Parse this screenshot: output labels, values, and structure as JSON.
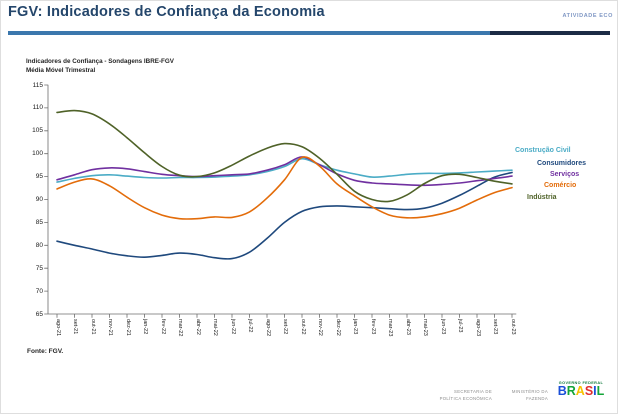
{
  "header": {
    "title": "FGV: Indicadores de Confiança da Economia",
    "tag": "ATIVIDADE ECO",
    "rule_left_color": "#3b77ad",
    "rule_right_color": "#1c2b45"
  },
  "chart": {
    "title_line1": "Indicadores de Confiança - Sondagens IBRE-FGV",
    "title_line2": "Média Móvel Trimestral"
  },
  "chart_data": {
    "type": "line",
    "title": "Indicadores de Confiança - Sondagens IBRE-FGV",
    "subtitle": "Média Móvel Trimestral",
    "xlabel": "",
    "ylabel": "",
    "ylim": [
      65,
      115
    ],
    "ytick_step": 5,
    "grid": false,
    "legend_position": "right-inline",
    "categories": [
      "ago-21",
      "set-21",
      "out-21",
      "nov-21",
      "dez-21",
      "jan-22",
      "fev-22",
      "mar-22",
      "abr-22",
      "mai-22",
      "jun-22",
      "jul-22",
      "ago-22",
      "set-22",
      "out-22",
      "nov-22",
      "dez-22",
      "jan-23",
      "fev-23",
      "mar-23",
      "abr-23",
      "mai-23",
      "jun-23",
      "jul-23",
      "ago-23",
      "set-23",
      "out-23"
    ],
    "series": [
      {
        "name": "Construção Civil",
        "color": "#4bacc6",
        "values": [
          93.8,
          94.6,
          95.2,
          95.4,
          95.1,
          94.8,
          94.7,
          94.8,
          94.8,
          94.9,
          95.1,
          95.4,
          96.1,
          97.2,
          98.9,
          97.6,
          96.4,
          95.6,
          94.9,
          95.1,
          95.5,
          95.7,
          95.7,
          95.8,
          96.0,
          96.2,
          96.4
        ]
      },
      {
        "name": "Consumidores",
        "color": "#1f497d",
        "values": [
          80.9,
          80.0,
          79.2,
          78.3,
          77.7,
          77.4,
          77.8,
          78.3,
          78.0,
          77.3,
          77.1,
          78.5,
          81.5,
          85.0,
          87.4,
          88.4,
          88.6,
          88.4,
          88.2,
          88.0,
          87.8,
          88.1,
          89.2,
          90.9,
          92.9,
          94.9,
          95.9
        ]
      },
      {
        "name": "Serviços",
        "color": "#7030a0",
        "values": [
          94.3,
          95.4,
          96.5,
          96.9,
          96.7,
          96.1,
          95.5,
          95.2,
          95.0,
          95.2,
          95.4,
          95.6,
          96.4,
          97.6,
          99.3,
          97.6,
          95.6,
          94.2,
          93.6,
          93.4,
          93.2,
          93.1,
          93.3,
          93.6,
          94.1,
          94.6,
          95.1
        ]
      },
      {
        "name": "Comércio",
        "color": "#e36c0a",
        "values": [
          92.3,
          93.8,
          94.5,
          93.0,
          90.5,
          88.2,
          86.6,
          85.8,
          85.8,
          86.2,
          86.1,
          87.3,
          90.3,
          94.3,
          99.2,
          97.3,
          93.4,
          90.8,
          88.4,
          86.6,
          86.0,
          86.2,
          86.9,
          88.1,
          89.9,
          91.5,
          92.6
        ]
      },
      {
        "name": "Indústria",
        "color": "#4f6228",
        "values": [
          109.0,
          109.4,
          108.7,
          106.5,
          103.5,
          100.2,
          97.2,
          95.3,
          95.0,
          95.8,
          97.5,
          99.5,
          101.2,
          102.2,
          101.5,
          99.0,
          95.5,
          91.8,
          90.0,
          89.6,
          91.0,
          93.5,
          95.2,
          95.5,
          94.8,
          94.0,
          93.4
        ]
      }
    ]
  },
  "source": {
    "label": "Fonte: FGV."
  },
  "footer": {
    "secretaria_line1": "Secretaria de",
    "secretaria_line2": "Política Econômica",
    "ministerio_line1": "Ministério da",
    "ministerio_line2": "Fazenda",
    "gov_label": "GOVERNO FEDERAL",
    "gov_color": "#0e7a3a",
    "brasil_letters": [
      {
        "ch": "B",
        "color": "#1b4fd8"
      },
      {
        "ch": "R",
        "color": "#13a538"
      },
      {
        "ch": "A",
        "color": "#f7c200"
      },
      {
        "ch": "S",
        "color": "#e02c2c"
      },
      {
        "ch": "I",
        "color": "#1b4fd8"
      },
      {
        "ch": "L",
        "color": "#13a538"
      }
    ]
  }
}
